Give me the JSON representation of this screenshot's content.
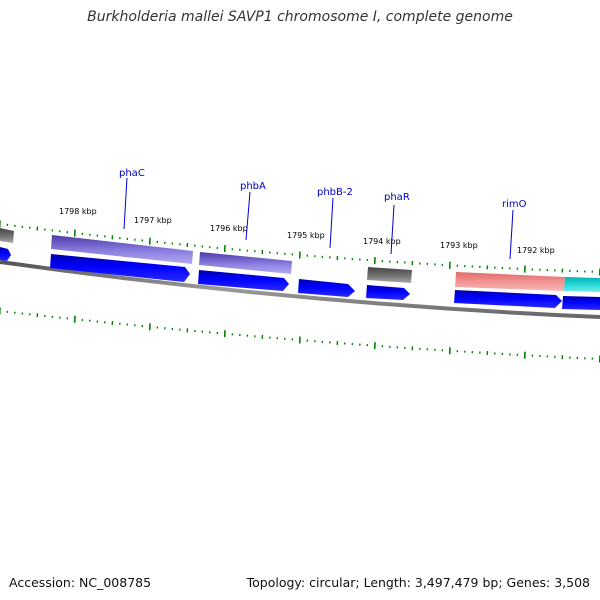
{
  "title": "Burkholderia mallei SAVP1 chromosome I, complete genome",
  "footer": {
    "accession": "Accession: NC_008785",
    "topology": "Topology: circular; Length: 3,497,479 bp; Genes: 3,508"
  },
  "positions": [
    "1798 kbp",
    "1797 kbp",
    "1796 kbp",
    "1795 kbp",
    "1794 kbp",
    "1793 kbp",
    "1792 kbp"
  ],
  "genes": [
    "phaC",
    "phbA",
    "phbB-2",
    "phaR",
    "rimO"
  ],
  "colors": {
    "backbone": "#808080",
    "cds": "#0000ee",
    "purple_feature": "#6a5acd",
    "gray_feature": "#555555",
    "pink_feature": "#f08080",
    "cyan_feature": "#00cccc",
    "ticks": "#008000",
    "gene_label": "#0000cc"
  }
}
